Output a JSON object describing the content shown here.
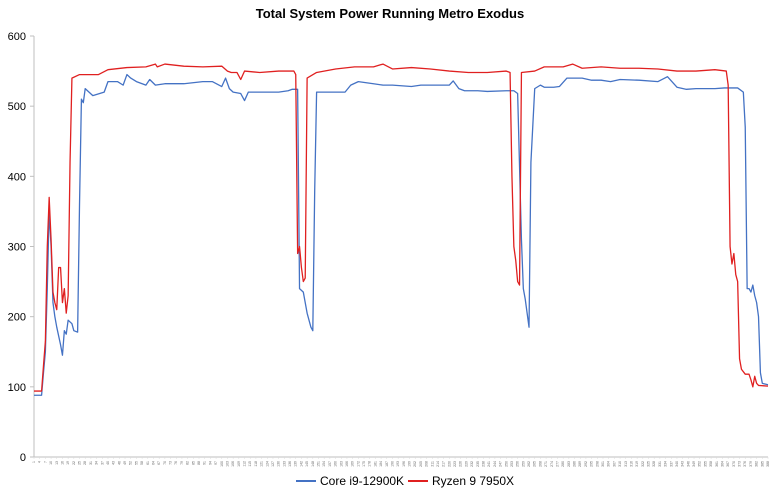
{
  "chart_data": {
    "type": "line",
    "title": "Total System Power Running Metro Exodus",
    "ylim": [
      0,
      600
    ],
    "yticks": [
      0,
      100,
      200,
      300,
      400,
      500,
      600
    ],
    "xlim": [
      1,
      388
    ],
    "x_tick_start": 1,
    "x_tick_step": 3,
    "grid": false,
    "legend_position": "bottom",
    "series": [
      {
        "name": "Core i9-12900K",
        "color": "#4472C4",
        "points": [
          [
            1,
            88
          ],
          [
            5,
            88
          ],
          [
            6,
            120
          ],
          [
            7,
            150
          ],
          [
            8,
            240
          ],
          [
            9,
            350
          ],
          [
            10,
            300
          ],
          [
            11,
            220
          ],
          [
            12,
            200
          ],
          [
            13,
            185
          ],
          [
            15,
            160
          ],
          [
            16,
            145
          ],
          [
            17,
            180
          ],
          [
            18,
            175
          ],
          [
            19,
            195
          ],
          [
            21,
            190
          ],
          [
            22,
            180
          ],
          [
            24,
            178
          ],
          [
            25,
            360
          ],
          [
            26,
            510
          ],
          [
            27,
            505
          ],
          [
            28,
            525
          ],
          [
            30,
            520
          ],
          [
            32,
            515
          ],
          [
            38,
            520
          ],
          [
            40,
            535
          ],
          [
            45,
            535
          ],
          [
            48,
            530
          ],
          [
            50,
            545
          ],
          [
            52,
            540
          ],
          [
            55,
            535
          ],
          [
            60,
            530
          ],
          [
            62,
            538
          ],
          [
            65,
            530
          ],
          [
            70,
            532
          ],
          [
            80,
            532
          ],
          [
            90,
            535
          ],
          [
            95,
            535
          ],
          [
            100,
            528
          ],
          [
            102,
            540
          ],
          [
            104,
            525
          ],
          [
            106,
            520
          ],
          [
            110,
            518
          ],
          [
            112,
            508
          ],
          [
            114,
            520
          ],
          [
            120,
            520
          ],
          [
            130,
            520
          ],
          [
            135,
            522
          ],
          [
            137,
            524
          ],
          [
            140,
            524
          ],
          [
            141,
            240
          ],
          [
            143,
            235
          ],
          [
            145,
            205
          ],
          [
            147,
            185
          ],
          [
            148,
            180
          ],
          [
            149,
            380
          ],
          [
            150,
            520
          ],
          [
            155,
            520
          ],
          [
            165,
            520
          ],
          [
            168,
            530
          ],
          [
            172,
            535
          ],
          [
            180,
            532
          ],
          [
            185,
            530
          ],
          [
            190,
            530
          ],
          [
            200,
            528
          ],
          [
            205,
            530
          ],
          [
            210,
            530
          ],
          [
            215,
            530
          ],
          [
            220,
            530
          ],
          [
            222,
            536
          ],
          [
            225,
            525
          ],
          [
            228,
            522
          ],
          [
            235,
            522
          ],
          [
            240,
            521
          ],
          [
            250,
            522
          ],
          [
            254,
            522
          ],
          [
            256,
            518
          ],
          [
            258,
            310
          ],
          [
            259,
            240
          ],
          [
            260,
            225
          ],
          [
            262,
            185
          ],
          [
            263,
            420
          ],
          [
            265,
            525
          ],
          [
            268,
            530
          ],
          [
            270,
            527
          ],
          [
            275,
            527
          ],
          [
            278,
            528
          ],
          [
            282,
            540
          ],
          [
            290,
            540
          ],
          [
            295,
            537
          ],
          [
            300,
            537
          ],
          [
            305,
            535
          ],
          [
            310,
            538
          ],
          [
            320,
            537
          ],
          [
            330,
            535
          ],
          [
            335,
            542
          ],
          [
            340,
            527
          ],
          [
            345,
            524
          ],
          [
            350,
            525
          ],
          [
            360,
            525
          ],
          [
            365,
            526
          ],
          [
            372,
            526
          ],
          [
            375,
            520
          ],
          [
            376,
            470
          ],
          [
            377,
            240
          ],
          [
            378,
            240
          ],
          [
            379,
            235
          ],
          [
            380,
            245
          ],
          [
            381,
            230
          ],
          [
            382,
            220
          ],
          [
            383,
            200
          ],
          [
            384,
            120
          ],
          [
            385,
            105
          ],
          [
            388,
            103
          ]
        ]
      },
      {
        "name": "Ryzen 9 7950X",
        "color": "#E02020",
        "points": [
          [
            1,
            94
          ],
          [
            5,
            94
          ],
          [
            6,
            130
          ],
          [
            7,
            165
          ],
          [
            8,
            300
          ],
          [
            9,
            370
          ],
          [
            10,
            310
          ],
          [
            11,
            235
          ],
          [
            12,
            220
          ],
          [
            13,
            210
          ],
          [
            14,
            270
          ],
          [
            15,
            270
          ],
          [
            16,
            220
          ],
          [
            17,
            240
          ],
          [
            18,
            205
          ],
          [
            19,
            230
          ],
          [
            20,
            420
          ],
          [
            21,
            540
          ],
          [
            25,
            545
          ],
          [
            35,
            545
          ],
          [
            40,
            552
          ],
          [
            50,
            555
          ],
          [
            60,
            556
          ],
          [
            65,
            560
          ],
          [
            66,
            556
          ],
          [
            70,
            560
          ],
          [
            80,
            557
          ],
          [
            90,
            556
          ],
          [
            100,
            557
          ],
          [
            103,
            550
          ],
          [
            105,
            548
          ],
          [
            108,
            548
          ],
          [
            110,
            538
          ],
          [
            112,
            550
          ],
          [
            120,
            548
          ],
          [
            130,
            550
          ],
          [
            138,
            550
          ],
          [
            139,
            545
          ],
          [
            140,
            290
          ],
          [
            141,
            300
          ],
          [
            142,
            270
          ],
          [
            143,
            250
          ],
          [
            144,
            255
          ],
          [
            145,
            540
          ],
          [
            150,
            548
          ],
          [
            160,
            553
          ],
          [
            170,
            556
          ],
          [
            180,
            556
          ],
          [
            185,
            560
          ],
          [
            190,
            553
          ],
          [
            200,
            555
          ],
          [
            210,
            553
          ],
          [
            220,
            550
          ],
          [
            230,
            548
          ],
          [
            240,
            548
          ],
          [
            250,
            550
          ],
          [
            252,
            548
          ],
          [
            253,
            400
          ],
          [
            254,
            300
          ],
          [
            255,
            280
          ],
          [
            256,
            250
          ],
          [
            257,
            245
          ],
          [
            258,
            548
          ],
          [
            265,
            550
          ],
          [
            270,
            556
          ],
          [
            280,
            556
          ],
          [
            285,
            560
          ],
          [
            290,
            554
          ],
          [
            300,
            556
          ],
          [
            310,
            554
          ],
          [
            320,
            554
          ],
          [
            330,
            553
          ],
          [
            340,
            550
          ],
          [
            350,
            550
          ],
          [
            360,
            552
          ],
          [
            366,
            550
          ],
          [
            367,
            530
          ],
          [
            368,
            300
          ],
          [
            369,
            275
          ],
          [
            370,
            290
          ],
          [
            371,
            260
          ],
          [
            372,
            250
          ],
          [
            373,
            140
          ],
          [
            374,
            125
          ],
          [
            376,
            118
          ],
          [
            378,
            118
          ],
          [
            379,
            110
          ],
          [
            380,
            100
          ],
          [
            381,
            115
          ],
          [
            382,
            105
          ],
          [
            383,
            102
          ],
          [
            388,
            101
          ]
        ]
      }
    ]
  }
}
